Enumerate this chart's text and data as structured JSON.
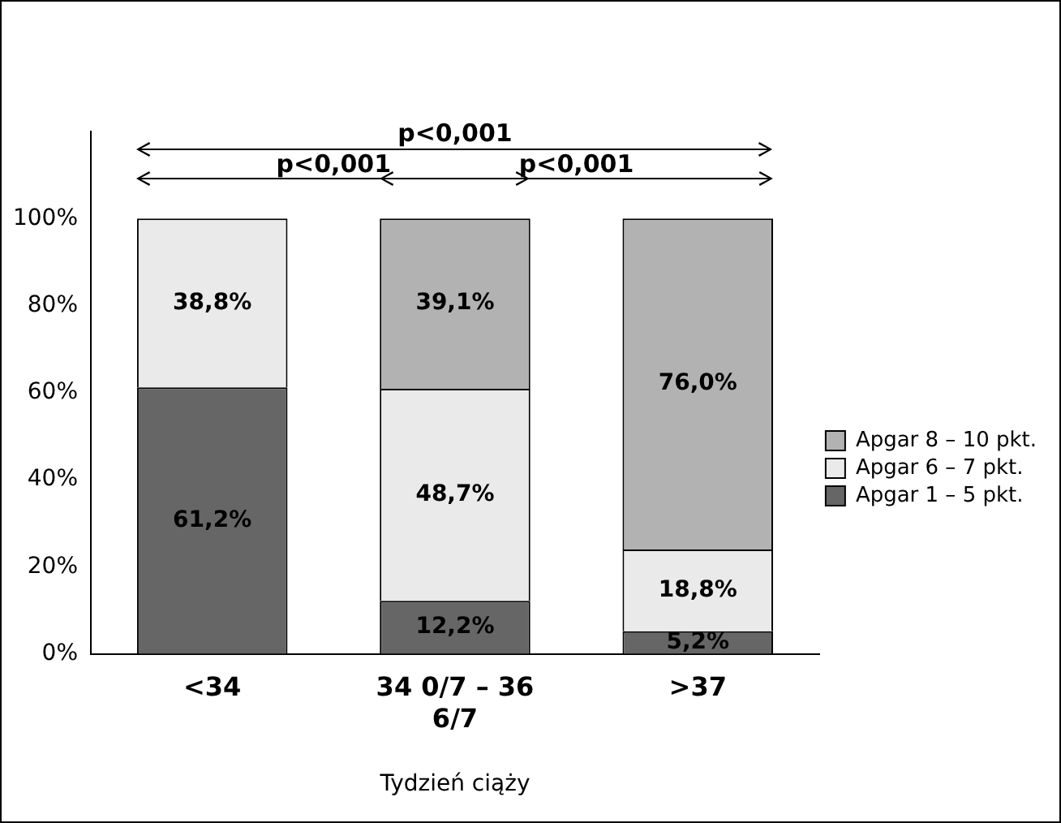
{
  "chart_data": {
    "type": "bar",
    "stacked": true,
    "categories": [
      "<34",
      "34 0/7 – 36 6/7",
      ">37"
    ],
    "series": [
      {
        "name": "Apgar 1 – 5 pkt.",
        "color": "#666666",
        "values": [
          61.2,
          12.2,
          5.2
        ],
        "value_labels": [
          "61,2%",
          "12,2%",
          "5,2%"
        ]
      },
      {
        "name": "Apgar 6 – 7 pkt.",
        "color": "#eaeaea",
        "values": [
          38.8,
          48.7,
          18.8
        ],
        "value_labels": [
          "38,8%",
          "48,7%",
          "18,8%"
        ]
      },
      {
        "name": "Apgar 8 – 10 pkt.",
        "color": "#b2b2b2",
        "values": [
          null,
          39.1,
          76.0
        ],
        "value_labels": [
          null,
          "39,1%",
          "76,0%"
        ]
      }
    ],
    "xlabel": "Tydzień ciąży",
    "ylim": [
      0,
      120
    ],
    "yticks": [
      {
        "value": 0,
        "label": "0%"
      },
      {
        "value": 20,
        "label": "20%"
      },
      {
        "value": 40,
        "label": "40%"
      },
      {
        "value": 60,
        "label": "60%"
      },
      {
        "value": 80,
        "label": "80%"
      },
      {
        "value": 100,
        "label": "100%"
      }
    ],
    "annotations": [
      "p<0,001",
      "p<0,001",
      "p<0,001"
    ],
    "legend": "right",
    "grid": false
  }
}
